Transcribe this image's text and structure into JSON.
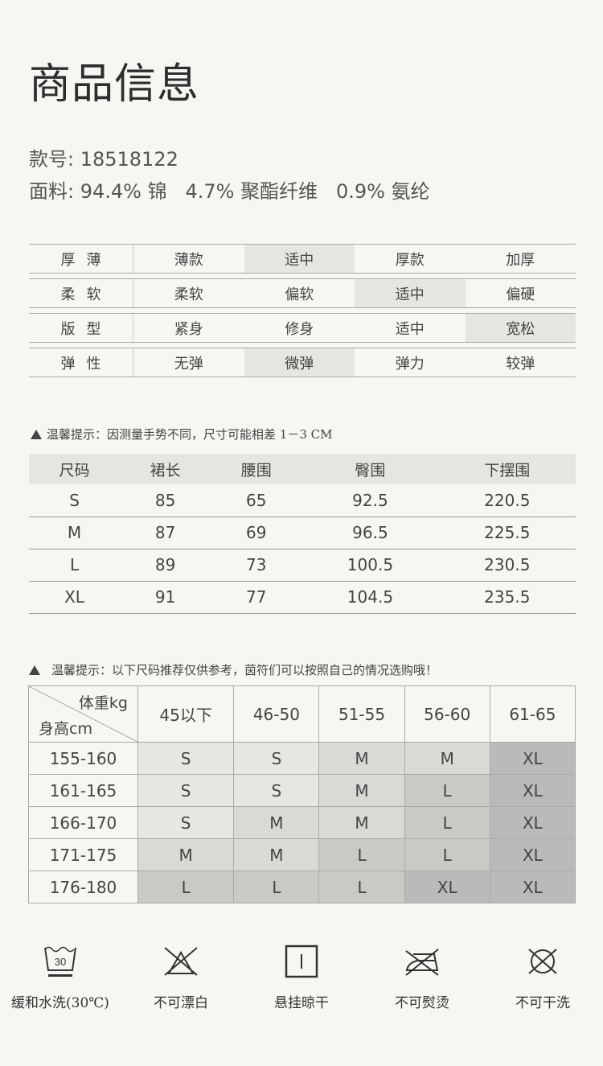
{
  "title": "商品信息",
  "style_no": "款号: 18518122",
  "fabric": "面料: 94.4% 锦   4.7% 聚酯纤维   0.9% 氨纶",
  "attributes": [
    {
      "label": "厚薄",
      "options": [
        "薄款",
        "适中",
        "厚款",
        "加厚"
      ],
      "selected": 1
    },
    {
      "label": "柔软",
      "options": [
        "柔软",
        "偏软",
        "适中",
        "偏硬"
      ],
      "selected": 2
    },
    {
      "label": "版型",
      "options": [
        "紧身",
        "修身",
        "适中",
        "宽松"
      ],
      "selected": 3
    },
    {
      "label": "弹性",
      "options": [
        "无弹",
        "微弹",
        "弹力",
        "较弹"
      ],
      "selected": 1
    }
  ],
  "tip1": "温馨提示：因测量手势不同，尺寸可能相差 1－3 CM",
  "size_table": {
    "headers": [
      "尺码",
      "裙长",
      "腰围",
      "臀围",
      "下摆围"
    ],
    "rows": [
      [
        "S",
        "85",
        "65",
        "92.5",
        "220.5"
      ],
      [
        "M",
        "87",
        "69",
        "96.5",
        "225.5"
      ],
      [
        "L",
        "89",
        "73",
        "100.5",
        "230.5"
      ],
      [
        "XL",
        "91",
        "77",
        "104.5",
        "235.5"
      ]
    ]
  },
  "tip2": "温馨提示：以下尺码推荐仅供参考，茵符们可以按照自己的情况选购哦！",
  "rec_table": {
    "weight_label": "体重kg",
    "height_label": "身高cm",
    "weights": [
      "45以下",
      "46-50",
      "51-55",
      "56-60",
      "61-65"
    ],
    "rows": [
      {
        "height": "155-160",
        "sizes": [
          "S",
          "S",
          "M",
          "M",
          "XL"
        ],
        "shade": [
          0,
          0,
          1,
          1,
          3
        ]
      },
      {
        "height": "161-165",
        "sizes": [
          "S",
          "S",
          "M",
          "L",
          "XL"
        ],
        "shade": [
          0,
          0,
          1,
          2,
          3
        ]
      },
      {
        "height": "166-170",
        "sizes": [
          "S",
          "M",
          "M",
          "L",
          "XL"
        ],
        "shade": [
          0,
          1,
          1,
          2,
          3
        ]
      },
      {
        "height": "171-175",
        "sizes": [
          "M",
          "M",
          "L",
          "L",
          "XL"
        ],
        "shade": [
          1,
          1,
          2,
          2,
          3
        ]
      },
      {
        "height": "176-180",
        "sizes": [
          "L",
          "L",
          "L",
          "XL",
          "XL"
        ],
        "shade": [
          2,
          2,
          2,
          3,
          3
        ]
      }
    ]
  },
  "care": [
    {
      "icon": "wash-30-icon",
      "label": "缓和水洗(30℃)",
      "temp": "30"
    },
    {
      "icon": "no-bleach-icon",
      "label": "不可漂白"
    },
    {
      "icon": "hang-dry-icon",
      "label": "悬挂晾干"
    },
    {
      "icon": "no-iron-icon",
      "label": "不可熨烫"
    },
    {
      "icon": "no-dry-clean-icon",
      "label": "不可干洗"
    }
  ]
}
